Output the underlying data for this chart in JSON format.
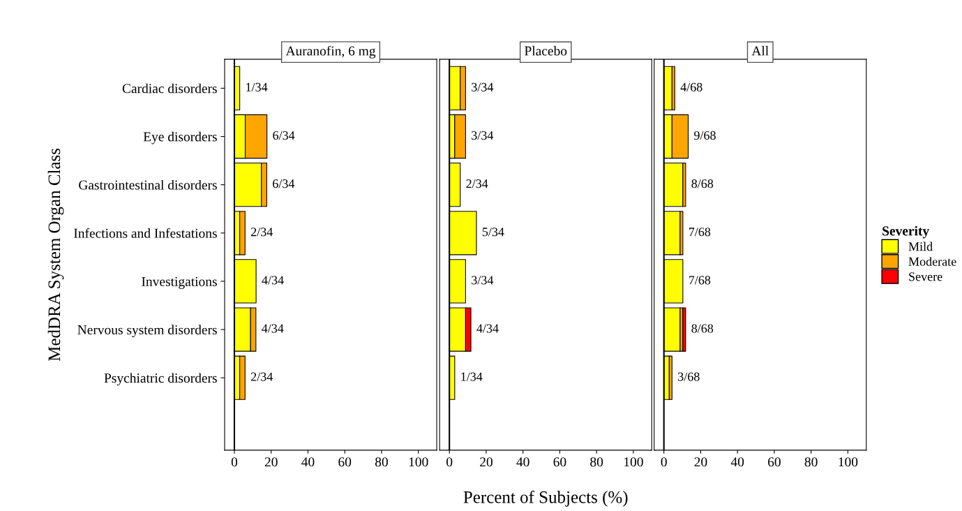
{
  "chart_data": [
    {
      "type": "bar",
      "orientation": "horizontal",
      "stacked": true,
      "title": "Auranofin, 6 mg",
      "ylabel": "MedDRA System Organ Class",
      "categories": [
        "Cardiac disorders",
        "Eye disorders",
        "Gastrointestinal disorders",
        "Infections and Infestations",
        "Investigations",
        "Nervous system disorders",
        "Psychiatric disorders"
      ],
      "series": [
        {
          "color": "#ffff00",
          "values": [
            2.9,
            5.9,
            14.7,
            2.9,
            11.8,
            8.8,
            2.9
          ]
        },
        {
          "color": "#ffa500",
          "values": [
            null,
            11.8,
            2.9,
            2.9,
            null,
            2.9,
            2.9
          ]
        }
      ],
      "totals": [
        "1/34",
        "6/34",
        "6/34",
        "2/34",
        "4/34",
        "4/34",
        "2/34"
      ],
      "xlim": [
        -5.3,
        110
      ],
      "xticks": [
        0,
        20,
        40,
        60,
        80,
        100
      ],
      "ref_lines": [
        {
          "axis": "x",
          "value": 0,
          "color": "#000000"
        }
      ],
      "grid": false
    },
    {
      "type": "bar",
      "orientation": "horizontal",
      "stacked": true,
      "title": "Placebo",
      "xlabel": "Percent of Subjects (%)",
      "categories": [
        null,
        null,
        null,
        null,
        null,
        null,
        null
      ],
      "series": [
        {
          "color": "#ffff00",
          "values": [
            5.9,
            2.9,
            5.9,
            14.7,
            8.8,
            8.8,
            2.9
          ]
        },
        {
          "color": "#ffa500",
          "values": [
            2.9,
            5.9,
            null,
            null,
            null,
            null,
            null
          ]
        },
        {
          "color": "#ff0000",
          "values": [
            null,
            null,
            null,
            null,
            null,
            2.9,
            null
          ]
        }
      ],
      "totals": [
        "3/34",
        "3/34",
        "2/34",
        "5/34",
        "3/34",
        "4/34",
        "1/34"
      ],
      "xlim": [
        -5.3,
        110
      ],
      "xticks": [
        0,
        20,
        40,
        60,
        80,
        100
      ],
      "ref_lines": [
        {
          "axis": "x",
          "value": 0,
          "color": "#000000"
        }
      ],
      "grid": false
    },
    {
      "type": "bar",
      "orientation": "horizontal",
      "stacked": true,
      "title": "All",
      "legend_title": "Severity",
      "categories": [
        null,
        null,
        null,
        null,
        null,
        null,
        null
      ],
      "series": [
        {
          "name": "Mild",
          "color": "#ffff00",
          "values": [
            4.4,
            4.4,
            10.3,
            8.8,
            10.3,
            8.8,
            2.9
          ]
        },
        {
          "name": "Moderate",
          "color": "#ffa500",
          "values": [
            1.5,
            8.8,
            1.5,
            1.5,
            null,
            1.5,
            1.5
          ]
        },
        {
          "name": "Severe",
          "color": "#ff0000",
          "values": [
            null,
            null,
            null,
            null,
            null,
            1.5,
            null
          ]
        }
      ],
      "totals": [
        "4/68",
        "9/68",
        "8/68",
        "7/68",
        "7/68",
        "8/68",
        "3/68"
      ],
      "xlim": [
        -5.3,
        110
      ],
      "xticks": [
        0,
        20,
        40,
        60,
        80,
        100
      ],
      "ref_lines": [
        {
          "axis": "x",
          "value": 0,
          "color": "#000000"
        }
      ],
      "grid": false,
      "legend": "right"
    }
  ]
}
